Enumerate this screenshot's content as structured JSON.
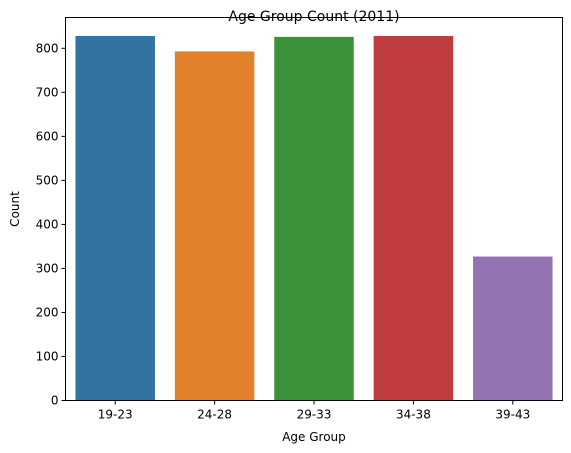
{
  "chart_data": {
    "type": "bar",
    "title": "Age Group Count (2011)",
    "xlabel": "Age Group",
    "ylabel": "Count",
    "categories": [
      "19-23",
      "24-28",
      "29-33",
      "34-38",
      "39-43"
    ],
    "values": [
      828,
      793,
      826,
      828,
      327
    ],
    "colors": [
      "#3274a1",
      "#e1812c",
      "#3a923a",
      "#c03d3e",
      "#9372b2"
    ],
    "ylim": [
      0,
      870
    ],
    "yticks": [
      0,
      100,
      200,
      300,
      400,
      500,
      600,
      700,
      800
    ],
    "grid": false,
    "legend": "none"
  }
}
